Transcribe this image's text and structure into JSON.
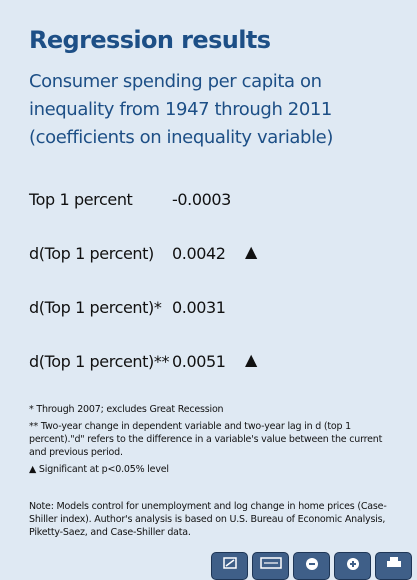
{
  "title": "Regression results",
  "subtitle_lines": [
    "Consumer spending per capita on",
    "inequality from 1947 through 2011",
    "(coefficients on inequality variable)"
  ],
  "results": [
    {
      "label": "Top 1 percent",
      "value": "-0.0003",
      "significant": false
    },
    {
      "label": "d(Top 1 percent)",
      "value": "0.0042",
      "significant": true
    },
    {
      "label": "d(Top 1 percent)*",
      "value": "0.0031",
      "significant": false
    },
    {
      "label": "d(Top 1 percent)**",
      "value": "0.0051",
      "significant": true
    }
  ],
  "significance_marker": "▲",
  "notes": {
    "single_asterisk": "* Through 2007; excludes Great Recession",
    "double_asterisk": "** Two-year change in dependent variable and two-year lag in d (top 1 percent).\"d\" refers to the difference in a variable's value between the current and previous period.",
    "significance": "▲ Significant at p<0.05% level",
    "models_note": "Note: Models control for unemployment and log change in home prices (Case-Shiller index). Author's analysis is based on U.S. Bureau of Economic Analysis, Piketty-Saez, and Case-Shiller data."
  },
  "toolbar": {
    "buttons": [
      {
        "icon": "fullscreen-icon"
      },
      {
        "icon": "fit-width-icon"
      },
      {
        "icon": "zoom-out-icon"
      },
      {
        "icon": "zoom-in-icon"
      },
      {
        "icon": "print-icon"
      }
    ]
  },
  "colors": {
    "background": "#dfe9f3",
    "heading": "#1d4f86",
    "toolbar": "#3f5f88"
  }
}
